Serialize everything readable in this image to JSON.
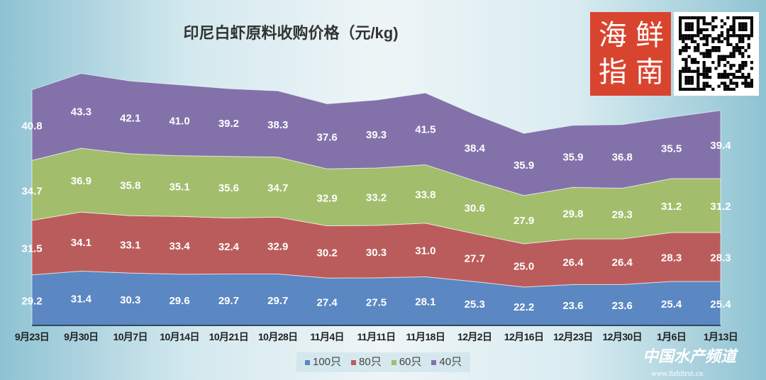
{
  "chart_data": {
    "type": "area",
    "stacked": true,
    "title": "印尼白虾原料收购价格（元/kg)",
    "xlabel": "",
    "ylabel": "",
    "categories": [
      "9月23日",
      "9月30日",
      "10月7日",
      "10月14日",
      "10月21日",
      "10月28日",
      "11月4日",
      "11月11日",
      "11月18日",
      "12月2日",
      "12月16日",
      "12月23日",
      "12月30日",
      "1月6日",
      "1月13日"
    ],
    "series": [
      {
        "name": "100只",
        "color": "#5b87c2",
        "values": [
          29.2,
          31.4,
          30.3,
          29.6,
          29.7,
          29.7,
          27.4,
          27.5,
          28.1,
          25.3,
          22.2,
          23.6,
          23.6,
          25.4,
          25.4
        ]
      },
      {
        "name": "80只",
        "color": "#bb5c5c",
        "values": [
          31.5,
          34.1,
          33.1,
          33.4,
          32.4,
          32.9,
          30.2,
          30.3,
          31.0,
          27.7,
          25.0,
          26.4,
          26.4,
          28.3,
          28.3
        ]
      },
      {
        "name": "60只",
        "color": "#a2bd6c",
        "values": [
          34.7,
          36.9,
          35.8,
          35.1,
          35.6,
          34.7,
          32.9,
          33.2,
          33.8,
          30.6,
          27.9,
          29.8,
          29.3,
          31.2,
          31.2
        ]
      },
      {
        "name": "40只",
        "color": "#8372aa",
        "values": [
          40.8,
          43.3,
          42.1,
          41.0,
          39.2,
          38.3,
          37.6,
          39.3,
          41.5,
          38.4,
          35.9,
          35.9,
          36.8,
          35.5,
          39.4
        ]
      }
    ],
    "legend": "bottom",
    "grid": false,
    "data_labels": true
  },
  "logo": {
    "text": [
      "海",
      "鲜",
      "指",
      "南"
    ]
  },
  "watermark": {
    "text": "中国水产频道",
    "url": "www.fishfirst.cn"
  }
}
